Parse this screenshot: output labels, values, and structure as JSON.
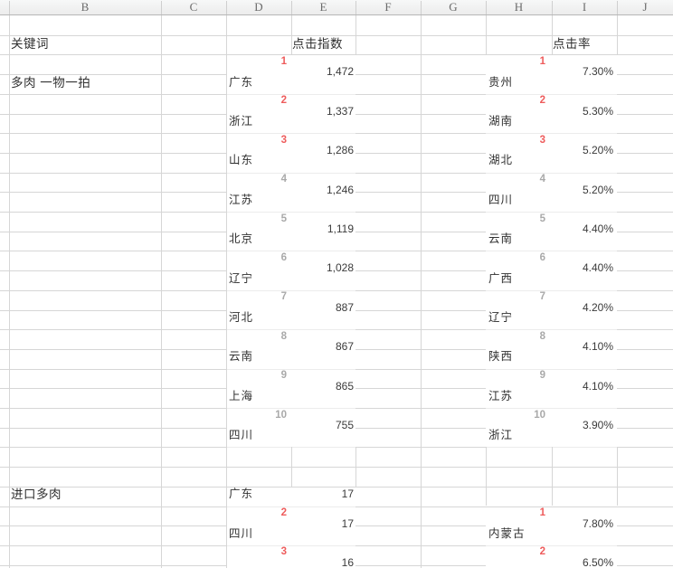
{
  "app": {
    "kind": "spreadsheet-grid"
  },
  "column_headers": [
    "B",
    "C",
    "D",
    "E",
    "F",
    "G",
    "H",
    "I",
    "J"
  ],
  "table": {
    "keyword_header": "关键词",
    "click_index_header": "点击指数",
    "click_rate_header": "点击率"
  },
  "sections": [
    {
      "keyword": "多肉 一物一拍",
      "click_index": {
        "entries": [
          {
            "rank": "1",
            "province": "广东",
            "value": "1,472"
          },
          {
            "rank": "2",
            "province": "浙江",
            "value": "1,337"
          },
          {
            "rank": "3",
            "province": "山东",
            "value": "1,286"
          },
          {
            "rank": "4",
            "province": "江苏",
            "value": "1,246"
          },
          {
            "rank": "5",
            "province": "北京",
            "value": "1,119"
          },
          {
            "rank": "6",
            "province": "辽宁",
            "value": "1,028"
          },
          {
            "rank": "7",
            "province": "河北",
            "value": "887"
          },
          {
            "rank": "8",
            "province": "云南",
            "value": "867"
          },
          {
            "rank": "9",
            "province": "上海",
            "value": "865"
          },
          {
            "rank": "10",
            "province": "四川",
            "value": "755"
          }
        ]
      },
      "click_rate": {
        "entries": [
          {
            "rank": "1",
            "province": "贵州",
            "value": "7.30%"
          },
          {
            "rank": "2",
            "province": "湖南",
            "value": "5.30%"
          },
          {
            "rank": "3",
            "province": "湖北",
            "value": "5.20%"
          },
          {
            "rank": "4",
            "province": "四川",
            "value": "5.20%"
          },
          {
            "rank": "5",
            "province": "云南",
            "value": "4.40%"
          },
          {
            "rank": "6",
            "province": "广西",
            "value": "4.40%"
          },
          {
            "rank": "7",
            "province": "辽宁",
            "value": "4.20%"
          },
          {
            "rank": "8",
            "province": "陕西",
            "value": "4.10%"
          },
          {
            "rank": "9",
            "province": "江苏",
            "value": "4.10%"
          },
          {
            "rank": "10",
            "province": "浙江",
            "value": "3.90%"
          }
        ]
      }
    },
    {
      "keyword": "进口多肉",
      "click_index": {
        "entries": [
          {
            "rank": "",
            "province": "广东",
            "value": "17"
          },
          {
            "rank": "2",
            "province": "四川",
            "value": "17"
          },
          {
            "rank": "3",
            "province": "",
            "value": "16"
          }
        ]
      },
      "click_rate": {
        "entries": [
          {
            "rank": "1",
            "province": "内蒙古",
            "value": "7.80%"
          },
          {
            "rank": "2",
            "province": "",
            "value": "6.50%"
          }
        ]
      }
    }
  ]
}
